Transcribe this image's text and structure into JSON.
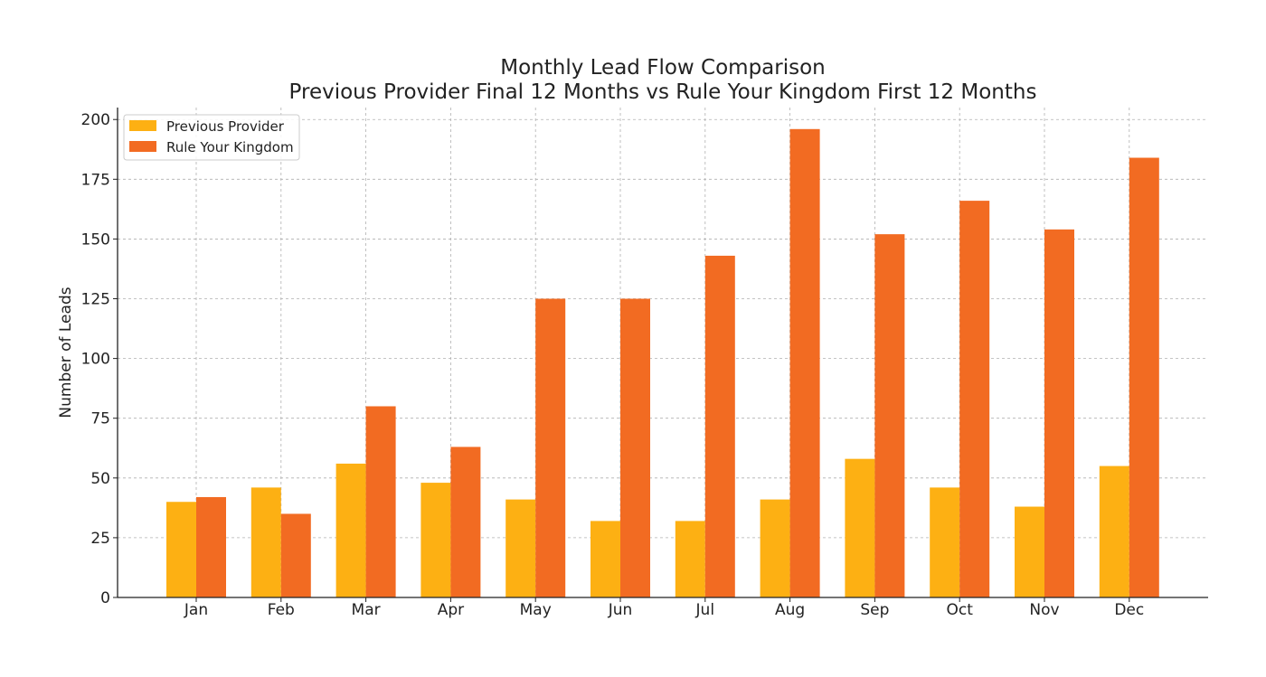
{
  "chart_data": {
    "type": "bar",
    "title": "Monthly Lead Flow Comparison",
    "subtitle": "Previous Provider Final 12 Months vs Rule Your Kingdom First 12 Months",
    "xlabel": "",
    "ylabel": "Number of Leads",
    "ylim": [
      0,
      205
    ],
    "yticks": [
      0,
      25,
      50,
      75,
      100,
      125,
      150,
      175,
      200
    ],
    "grid": true,
    "legend_position": "top-left",
    "categories": [
      "Jan",
      "Feb",
      "Mar",
      "Apr",
      "May",
      "Jun",
      "Jul",
      "Aug",
      "Sep",
      "Oct",
      "Nov",
      "Dec"
    ],
    "series": [
      {
        "name": "Previous Provider",
        "color": "#FDB013",
        "values": [
          40,
          46,
          56,
          48,
          41,
          32,
          32,
          41,
          58,
          46,
          38,
          55
        ]
      },
      {
        "name": "Rule Your Kingdom",
        "color": "#F26B22",
        "values": [
          42,
          35,
          80,
          63,
          125,
          125,
          143,
          196,
          152,
          166,
          154,
          184
        ]
      }
    ]
  }
}
